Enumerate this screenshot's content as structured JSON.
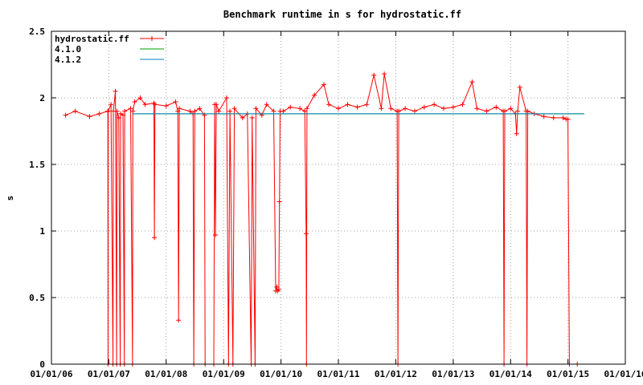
{
  "chart_data": {
    "type": "line",
    "title": "Benchmark runtime in s for hydrostatic.ff",
    "xlabel": "",
    "ylabel": "s",
    "x_type": "date",
    "xlim": [
      "2006-01-01",
      "2016-01-01"
    ],
    "ylim": [
      0,
      2.5
    ],
    "x_ticks": [
      "01/01/06",
      "01/01/07",
      "01/01/08",
      "01/01/09",
      "01/01/10",
      "01/01/11",
      "01/01/12",
      "01/01/13",
      "01/01/14",
      "01/01/15",
      "01/01/16"
    ],
    "y_ticks": [
      "0",
      "0.5",
      "1",
      "1.5",
      "2",
      "2.5"
    ],
    "grid": true,
    "legend_position": "top-left",
    "series": [
      {
        "name": "hydrostatic.ff",
        "color": "#ff0000",
        "marker": "plus",
        "points": [
          [
            "2006-04-01",
            1.87
          ],
          [
            "2006-06-01",
            1.9
          ],
          [
            "2006-09-01",
            1.86
          ],
          [
            "2006-11-01",
            1.88
          ],
          [
            "2006-12-26",
            1.9
          ],
          [
            "2006-12-27",
            0.0
          ],
          [
            "2006-12-28",
            1.9
          ],
          [
            "2007-01-15",
            1.95
          ],
          [
            "2007-01-28",
            0.0
          ],
          [
            "2007-01-30",
            1.9
          ],
          [
            "2007-02-12",
            2.05
          ],
          [
            "2007-02-20",
            0.0
          ],
          [
            "2007-02-22",
            1.9
          ],
          [
            "2007-03-05",
            1.85
          ],
          [
            "2007-03-15",
            0.0
          ],
          [
            "2007-03-17",
            1.88
          ],
          [
            "2007-04-01",
            1.87
          ],
          [
            "2007-04-10",
            0.0
          ],
          [
            "2007-04-12",
            1.9
          ],
          [
            "2007-05-20",
            1.92
          ],
          [
            "2007-06-01",
            0.0
          ],
          [
            "2007-06-03",
            1.9
          ],
          [
            "2007-06-15",
            1.97
          ],
          [
            "2007-07-20",
            2.0
          ],
          [
            "2007-08-20",
            1.95
          ],
          [
            "2007-10-15",
            1.96
          ],
          [
            "2007-10-18",
            0.95
          ],
          [
            "2007-10-22",
            1.95
          ],
          [
            "2008-01-01",
            1.94
          ],
          [
            "2008-03-01",
            1.97
          ],
          [
            "2008-03-15",
            1.9
          ],
          [
            "2008-03-20",
            0.33
          ],
          [
            "2008-03-25",
            1.92
          ],
          [
            "2008-06-01",
            1.9
          ],
          [
            "2008-06-20",
            1.88
          ],
          [
            "2008-06-25",
            0.0
          ],
          [
            "2008-07-01",
            1.9
          ],
          [
            "2008-08-01",
            1.92
          ],
          [
            "2008-09-01",
            1.87
          ],
          [
            "2008-09-05",
            0.0
          ],
          [
            "2008-10-30",
            0.0
          ],
          [
            "2008-11-05",
            1.95
          ],
          [
            "2008-11-10",
            0.97
          ],
          [
            "2008-11-15",
            1.95
          ],
          [
            "2008-12-01",
            1.9
          ],
          [
            "2009-01-20",
            2.0
          ],
          [
            "2009-02-01",
            0.0
          ],
          [
            "2009-02-10",
            1.9
          ],
          [
            "2009-03-01",
            0.0
          ],
          [
            "2009-03-10",
            1.92
          ],
          [
            "2009-05-01",
            1.85
          ],
          [
            "2009-06-01",
            1.88
          ],
          [
            "2009-06-25",
            0.0
          ],
          [
            "2009-07-01",
            1.85
          ],
          [
            "2009-07-20",
            0.0
          ],
          [
            "2009-07-25",
            1.92
          ],
          [
            "2009-09-01",
            1.87
          ],
          [
            "2009-10-01",
            1.95
          ],
          [
            "2009-11-15",
            1.9
          ],
          [
            "2009-11-28",
            0.55
          ],
          [
            "2009-12-05",
            0.58
          ],
          [
            "2009-12-10",
            0.55
          ],
          [
            "2009-12-18",
            0.56
          ],
          [
            "2009-12-22",
            1.22
          ],
          [
            "2009-12-26",
            1.9
          ],
          [
            "2010-01-15",
            1.9
          ],
          [
            "2010-03-01",
            1.93
          ],
          [
            "2010-05-01",
            1.92
          ],
          [
            "2010-06-01",
            1.9
          ],
          [
            "2010-06-10",
            0.98
          ],
          [
            "2010-06-12",
            0.0
          ],
          [
            "2010-06-15",
            1.92
          ],
          [
            "2010-08-01",
            2.02
          ],
          [
            "2010-10-01",
            2.1
          ],
          [
            "2010-11-01",
            1.95
          ],
          [
            "2011-01-01",
            1.92
          ],
          [
            "2011-03-01",
            1.95
          ],
          [
            "2011-05-01",
            1.93
          ],
          [
            "2011-07-01",
            1.95
          ],
          [
            "2011-08-15",
            2.17
          ],
          [
            "2011-10-01",
            1.92
          ],
          [
            "2011-10-20",
            2.18
          ],
          [
            "2011-12-01",
            1.92
          ],
          [
            "2012-01-10",
            1.9
          ],
          [
            "2012-01-15",
            0.0
          ],
          [
            "2012-01-20",
            1.9
          ],
          [
            "2012-03-01",
            1.92
          ],
          [
            "2012-05-01",
            1.9
          ],
          [
            "2012-07-01",
            1.93
          ],
          [
            "2012-09-01",
            1.95
          ],
          [
            "2012-11-01",
            1.92
          ],
          [
            "2013-01-01",
            1.93
          ],
          [
            "2013-03-01",
            1.95
          ],
          [
            "2013-05-01",
            2.12
          ],
          [
            "2013-06-01",
            1.92
          ],
          [
            "2013-08-01",
            1.9
          ],
          [
            "2013-10-01",
            1.93
          ],
          [
            "2013-11-15",
            1.9
          ],
          [
            "2013-11-20",
            0.0
          ],
          [
            "2013-11-25",
            1.9
          ],
          [
            "2014-01-01",
            1.92
          ],
          [
            "2014-02-01",
            1.88
          ],
          [
            "2014-02-08",
            1.73
          ],
          [
            "2014-02-15",
            1.9
          ],
          [
            "2014-03-01",
            2.08
          ],
          [
            "2014-04-10",
            1.9
          ],
          [
            "2014-04-15",
            0.0
          ],
          [
            "2014-04-20",
            1.9
          ],
          [
            "2014-06-01",
            1.88
          ],
          [
            "2014-08-01",
            1.86
          ],
          [
            "2014-10-01",
            1.85
          ],
          [
            "2014-12-01",
            1.85
          ],
          [
            "2014-12-20",
            1.84
          ],
          [
            "2015-01-01",
            1.84
          ],
          [
            "2015-01-10",
            0.0
          ],
          [
            "2015-03-01",
            0.0
          ]
        ]
      },
      {
        "name": "4.1.0",
        "color": "#00a000",
        "points": [
          [
            "2007-06-01",
            1.88
          ],
          [
            "2015-04-15",
            1.88
          ]
        ]
      },
      {
        "name": "4.1.2",
        "color": "#0080c0",
        "points": [
          [
            "2007-06-01",
            1.88
          ],
          [
            "2015-04-15",
            1.88
          ]
        ]
      }
    ]
  }
}
